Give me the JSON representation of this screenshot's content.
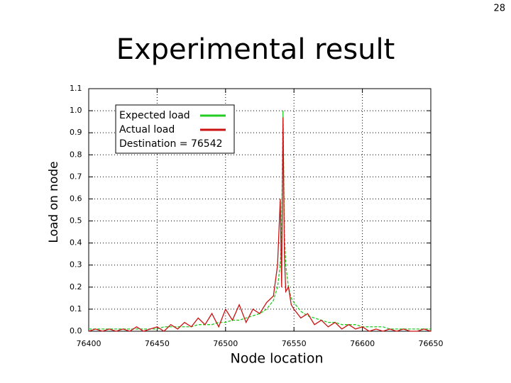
{
  "page_number": "28",
  "chart_data": {
    "type": "line",
    "title": "Experimental result",
    "xlabel": "Node location",
    "ylabel": "Load on node",
    "annotation": "Destination = 76542",
    "x": [
      76400,
      76405,
      76410,
      76415,
      76420,
      76425,
      76430,
      76435,
      76440,
      76445,
      76450,
      76455,
      76460,
      76465,
      76470,
      76475,
      76480,
      76485,
      76490,
      76495,
      76500,
      76505,
      76510,
      76515,
      76520,
      76525,
      76530,
      76535,
      76538,
      76540,
      76541,
      76542,
      76543,
      76544,
      76546,
      76548,
      76550,
      76555,
      76560,
      76565,
      76570,
      76575,
      76580,
      76585,
      76590,
      76595,
      76600,
      76605,
      76610,
      76615,
      76620,
      76625,
      76630,
      76635,
      76640,
      76645,
      76650
    ],
    "series": [
      {
        "name": "Expected load",
        "color": "#22cc22",
        "values": [
          0.01,
          0.01,
          0.01,
          0.01,
          0.01,
          0.01,
          0.01,
          0.01,
          0.01,
          0.01,
          0.01,
          0.02,
          0.02,
          0.02,
          0.02,
          0.02,
          0.03,
          0.03,
          0.03,
          0.04,
          0.04,
          0.05,
          0.05,
          0.06,
          0.07,
          0.08,
          0.1,
          0.14,
          0.2,
          0.3,
          0.45,
          1.0,
          0.45,
          0.3,
          0.2,
          0.15,
          0.13,
          0.09,
          0.07,
          0.06,
          0.05,
          0.04,
          0.04,
          0.03,
          0.03,
          0.03,
          0.02,
          0.02,
          0.02,
          0.02,
          0.01,
          0.01,
          0.01,
          0.01,
          0.01,
          0.01,
          0.01
        ]
      },
      {
        "name": "Actual load",
        "color": "#cc1111",
        "values": [
          0.0,
          0.01,
          0.0,
          0.01,
          0.0,
          0.01,
          0.0,
          0.02,
          0.0,
          0.01,
          0.02,
          0.0,
          0.03,
          0.01,
          0.04,
          0.02,
          0.06,
          0.03,
          0.08,
          0.02,
          0.1,
          0.05,
          0.12,
          0.04,
          0.1,
          0.08,
          0.13,
          0.16,
          0.3,
          0.6,
          0.2,
          0.97,
          0.35,
          0.18,
          0.2,
          0.12,
          0.1,
          0.06,
          0.08,
          0.03,
          0.05,
          0.02,
          0.04,
          0.01,
          0.03,
          0.01,
          0.02,
          0.0,
          0.01,
          0.0,
          0.01,
          0.0,
          0.01,
          0.0,
          0.0,
          0.01,
          0.0
        ]
      }
    ],
    "xlim": [
      76400,
      76650
    ],
    "xticks": [
      76400,
      76450,
      76500,
      76550,
      76600,
      76650
    ],
    "ylim": [
      0,
      1.1
    ],
    "yticks": [
      {
        "value": 0,
        "label": "0.0"
      },
      0.1,
      0.2,
      0.3,
      0.4,
      0.5,
      0.6,
      0.7,
      0.8,
      0.9,
      {
        "value": 1,
        "label": "1.0"
      },
      1.1
    ],
    "grid": true
  }
}
